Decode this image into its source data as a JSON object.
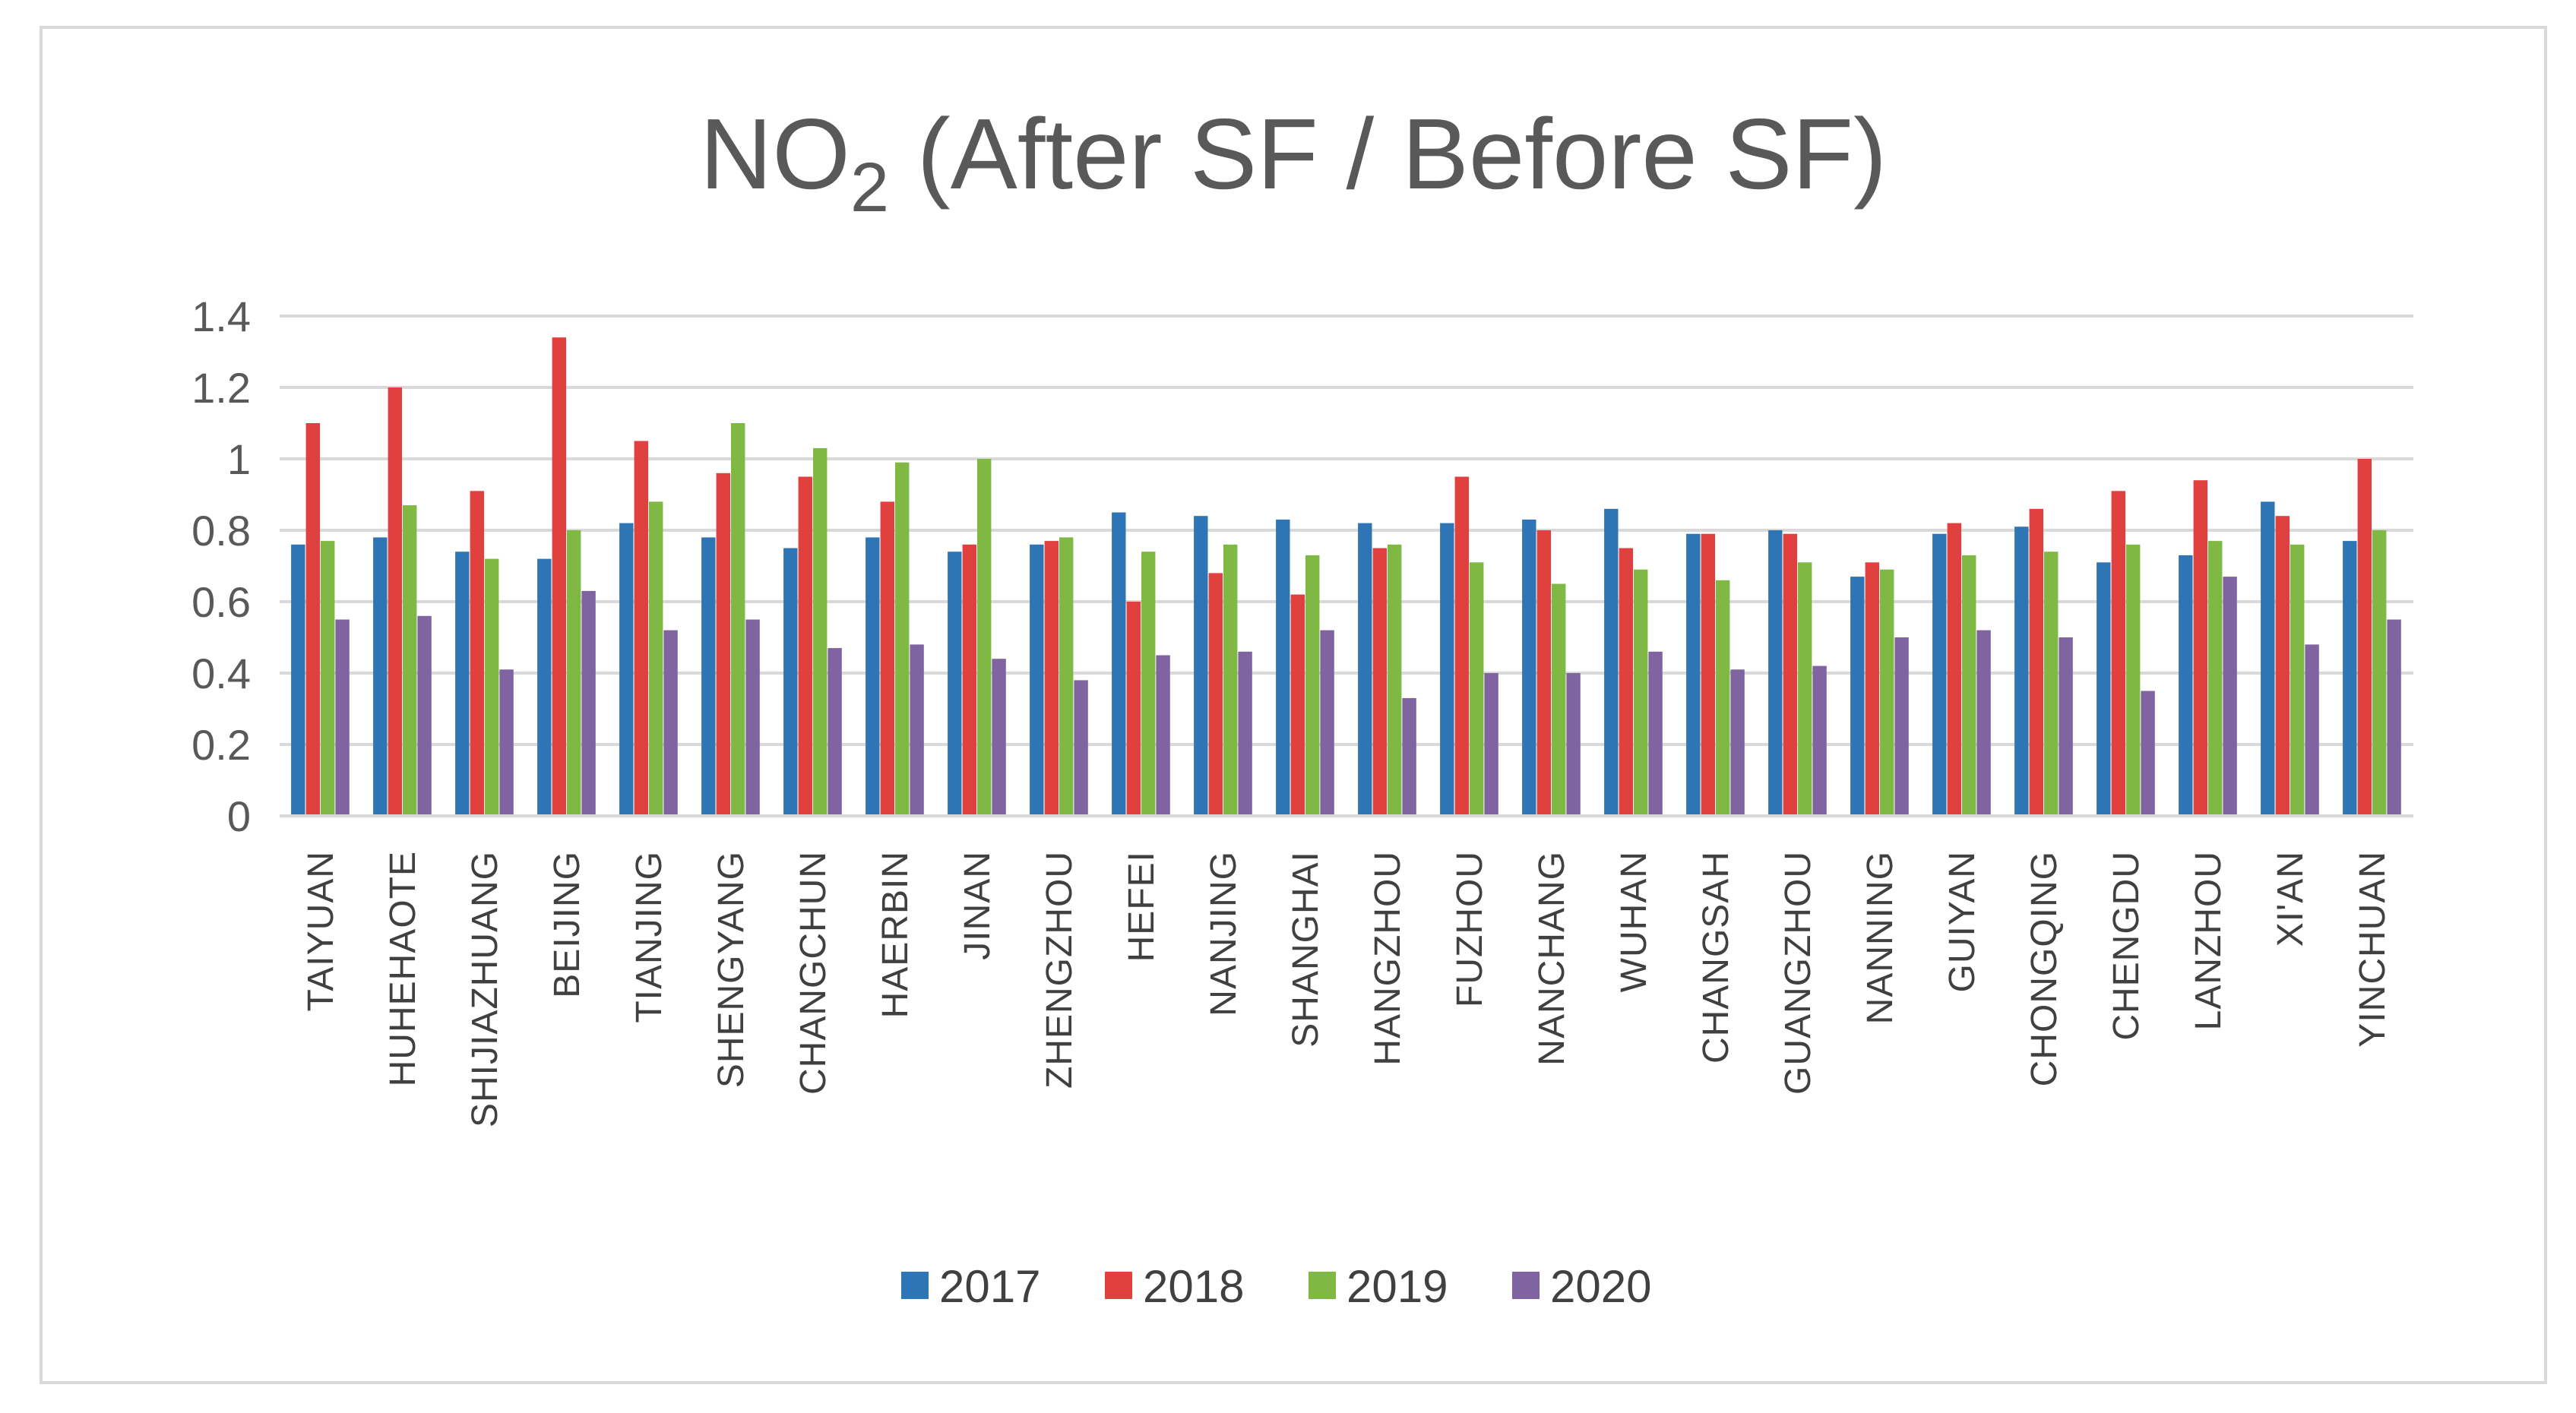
{
  "chart_data": {
    "type": "bar",
    "title": "NO",
    "title_subscript": "2",
    "title_suffix": " (After SF / Before SF)",
    "xlabel": "",
    "ylabel": "",
    "ylim": [
      0,
      1.4
    ],
    "yticks": [
      0,
      0.2,
      0.4,
      0.6,
      0.8,
      1,
      1.2,
      1.4
    ],
    "ytick_labels": [
      "0",
      "0.2",
      "0.4",
      "0.6",
      "0.8",
      "1",
      "1.2",
      "1.4"
    ],
    "grid": true,
    "legend_position": "bottom",
    "categories": [
      "TAIYUAN",
      "HUHEHAOTE",
      "SHIJIAZHUANG",
      "BEIJING",
      "TIANJING",
      "SHENGYANG",
      "CHANGCHUN",
      "HAERBIN",
      "JINAN",
      "ZHENGZHOU",
      "HEFEI",
      "NANJING",
      "SHANGHAI",
      "HANGZHOU",
      "FUZHOU",
      "NANCHANG",
      "WUHAN",
      "CHANGSAH",
      "GUANGZHOU",
      "NANNING",
      "GUIYAN",
      "CHONGQING",
      "CHENGDU",
      "LANZHOU",
      "XI'AN",
      "YINCHUAN"
    ],
    "series": [
      {
        "name": "2017",
        "color": "#2e75b6",
        "values": [
          0.76,
          0.78,
          0.74,
          0.72,
          0.82,
          0.78,
          0.75,
          0.78,
          0.74,
          0.76,
          0.85,
          0.84,
          0.83,
          0.82,
          0.82,
          0.83,
          0.86,
          0.79,
          0.8,
          0.67,
          0.79,
          0.81,
          0.71,
          0.73,
          0.88,
          0.77
        ]
      },
      {
        "name": "2018",
        "color": "#e0413f",
        "values": [
          1.1,
          1.2,
          0.91,
          1.34,
          1.05,
          0.96,
          0.95,
          0.88,
          0.76,
          0.77,
          0.6,
          0.68,
          0.62,
          0.75,
          0.95,
          0.8,
          0.75,
          0.79,
          0.79,
          0.71,
          0.82,
          0.86,
          0.91,
          0.94,
          0.84,
          1.0
        ]
      },
      {
        "name": "2019",
        "color": "#7fb843",
        "values": [
          0.77,
          0.87,
          0.72,
          0.8,
          0.88,
          1.1,
          1.03,
          0.99,
          1.0,
          0.78,
          0.74,
          0.76,
          0.73,
          0.76,
          0.71,
          0.65,
          0.69,
          0.66,
          0.71,
          0.69,
          0.73,
          0.74,
          0.76,
          0.77,
          0.76,
          0.8
        ]
      },
      {
        "name": "2020",
        "color": "#8064a2",
        "values": [
          0.55,
          0.56,
          0.41,
          0.63,
          0.52,
          0.55,
          0.47,
          0.48,
          0.44,
          0.38,
          0.45,
          0.46,
          0.52,
          0.33,
          0.4,
          0.4,
          0.46,
          0.41,
          0.42,
          0.5,
          0.52,
          0.5,
          0.35,
          0.67,
          0.48,
          0.55
        ]
      }
    ]
  }
}
